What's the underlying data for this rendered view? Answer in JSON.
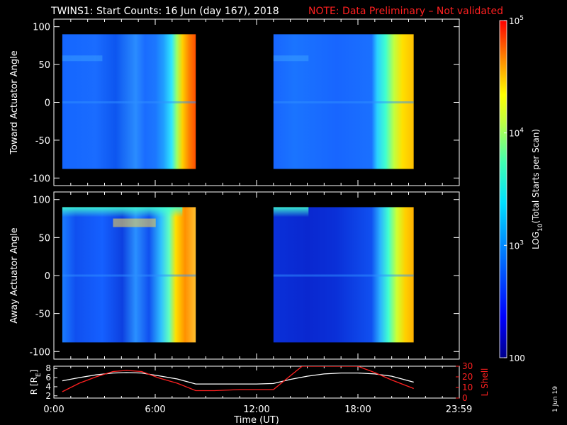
{
  "title": "TWINS1: Start Counts: 16 Jun (day 167), 2018",
  "note": "NOTE: Data Preliminary – Not validated",
  "footer_date": "1 Jun 19",
  "colors": {
    "background": "#000000",
    "axes": "#ffffff",
    "note": "#ff2020",
    "r_line": "#ffffff",
    "lshell_line": "#ff2020"
  },
  "chart_data": [
    {
      "type": "heatmap",
      "ylabel": "Toward Actuator Angle",
      "xlim": [
        0,
        24
      ],
      "ylim": [
        -110,
        110
      ],
      "yticks": [
        100,
        50,
        0,
        -50,
        -100
      ],
      "angle_range": [
        -88,
        90
      ],
      "data_intervals": [
        [
          0.5,
          8.4
        ],
        [
          13.0,
          21.3
        ]
      ],
      "color_scale": {
        "type": "log",
        "min": 100,
        "max": 100000
      }
    },
    {
      "type": "heatmap",
      "ylabel": "Away Actuator Angle",
      "xlim": [
        0,
        24
      ],
      "ylim": [
        -110,
        110
      ],
      "yticks": [
        100,
        50,
        0,
        -50,
        -100
      ],
      "angle_range": [
        -88,
        90
      ],
      "data_intervals": [
        [
          0.5,
          8.4
        ],
        [
          13.0,
          21.3
        ]
      ],
      "color_scale": {
        "type": "log",
        "min": 100,
        "max": 100000
      }
    },
    {
      "type": "line",
      "xlabel": "Time (UT)",
      "xlim": [
        0,
        24
      ],
      "xtick_labels": [
        "0:00",
        "6:00",
        "12:00",
        "18:00",
        "23:59"
      ],
      "xtick_values": [
        0,
        6,
        12,
        18,
        23.98
      ],
      "ylabel_left": "R [R",
      "ylabel_left_sub": "E",
      "ylabel_left_end": "]",
      "ylim_left": [
        1.5,
        8.5
      ],
      "yticks_left": [
        2,
        4,
        6,
        8
      ],
      "ylabel_right": "L Shell",
      "ylim_right": [
        0,
        30
      ],
      "yticks_right": [
        0,
        10,
        20,
        30
      ],
      "series": [
        {
          "axis": "left",
          "x": [
            0.5,
            1.5,
            2.5,
            3.5,
            4.3,
            5.2,
            6.2,
            7.3,
            8.4,
            9.5,
            11.0,
            12.0,
            13.0,
            14.0,
            15.0,
            16.0,
            17.0,
            18.0,
            19.0,
            20.0,
            21.3
          ],
          "values": [
            5.3,
            6.0,
            6.6,
            7.0,
            7.1,
            7.0,
            6.4,
            5.7,
            4.6,
            4.6,
            4.6,
            4.6,
            4.7,
            5.6,
            6.3,
            6.8,
            7.0,
            7.0,
            6.8,
            6.3,
            5.0
          ]
        },
        {
          "axis": "right",
          "x": [
            0.5,
            1.5,
            2.5,
            3.5,
            4.3,
            5.2,
            6.2,
            7.3,
            8.4,
            9.5,
            11.0,
            12.0,
            13.0,
            14.0,
            14.7,
            18.0,
            19.0,
            20.0,
            21.3
          ],
          "values": [
            6,
            14,
            20,
            25,
            26,
            25,
            19,
            14,
            7,
            7,
            8,
            8,
            8,
            21,
            30,
            30,
            24,
            17,
            9
          ]
        }
      ]
    },
    {
      "type": "colorbar",
      "scale": "log",
      "range": [
        100,
        100000
      ],
      "tick_values": [
        100,
        1000,
        10000,
        100000
      ],
      "tick_label_base": [
        "100",
        "10",
        "10",
        "10"
      ],
      "tick_label_exp": [
        "",
        "3",
        "4",
        "5"
      ],
      "label_prefix": "LOG",
      "label_sub": "10",
      "label_suffix": "(Total Starts per Scan)"
    }
  ]
}
